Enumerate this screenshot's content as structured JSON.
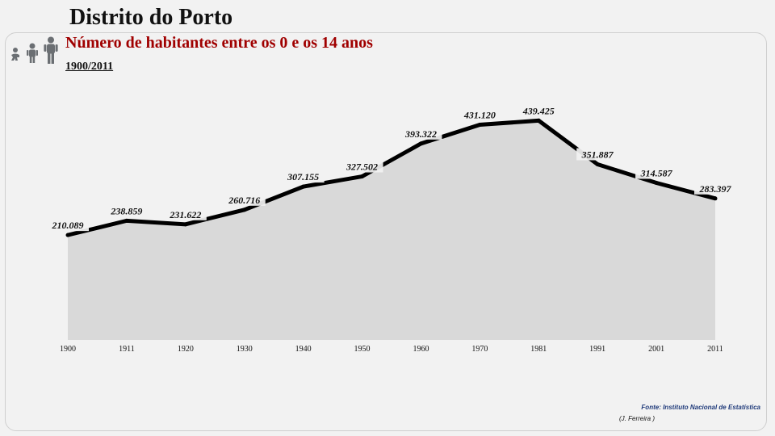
{
  "header": {
    "title": "Distrito do Porto",
    "subtitle": "Número de habitantes entre os 0 e os 14 anos",
    "period": "1900/2011"
  },
  "footer": {
    "source": "Fonte: Instituto Nacional de Estatística",
    "author": "(J. Ferreira )"
  },
  "colors": {
    "area": "#d9d9d9",
    "line": "#000000",
    "subtitle": "#a00000",
    "source": "#1f3a7a",
    "icons": "#6b6f73"
  },
  "icons": [
    "baby-icon",
    "child-icon",
    "adult-icon"
  ],
  "chart_data": {
    "type": "area",
    "title": "Número de habitantes entre os 0 e os 14 anos",
    "xlabel": "",
    "ylabel": "",
    "categories": [
      "1900",
      "1911",
      "1920",
      "1930",
      "1940",
      "1950",
      "1960",
      "1970",
      "1981",
      "1991",
      "2001",
      "2011"
    ],
    "series": [
      {
        "values": [
          210089,
          238859,
          231622,
          260716,
          307155,
          327502,
          393322,
          431120,
          439425,
          351887,
          314587,
          283397
        ],
        "labels": [
          "210.089",
          "238.859",
          "231.622",
          "260.716",
          "307.155",
          "327.502",
          "393.322",
          "431.120",
          "439.425",
          "351.887",
          "314.587",
          "283.397"
        ]
      }
    ],
    "ylim": [
      0,
      660000
    ],
    "grid": false,
    "legend": "none"
  }
}
